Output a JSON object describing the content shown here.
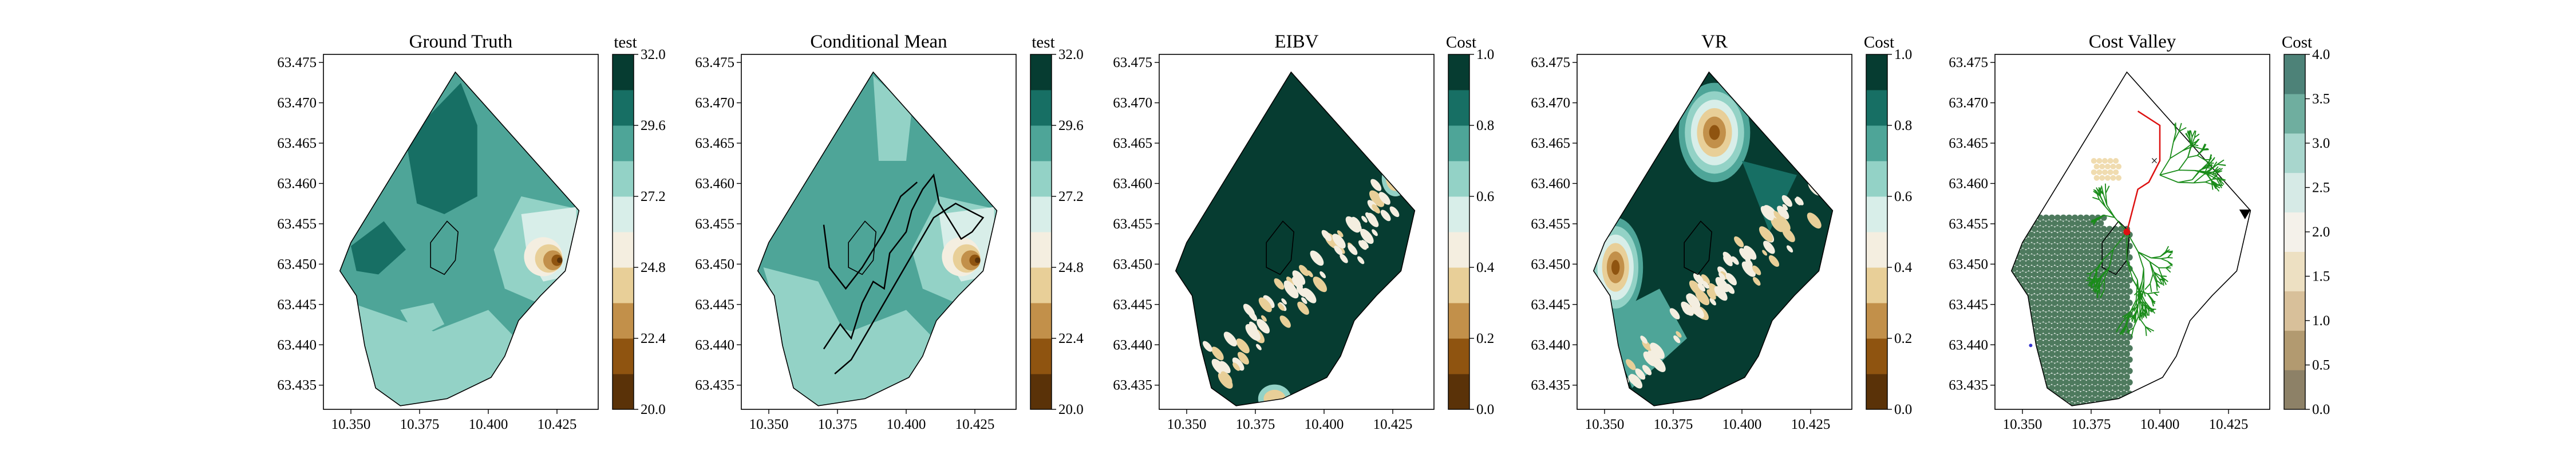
{
  "chart_data": [
    {
      "type": "heatmap",
      "title": "Ground Truth",
      "colorbar": {
        "label": "test",
        "min": 20.0,
        "max": 32.0,
        "ticks": [
          "20.0",
          "22.4",
          "24.8",
          "27.2",
          "29.6",
          "32.0"
        ]
      },
      "xlim": [
        10.34,
        10.44
      ],
      "ylim": [
        63.432,
        63.476
      ],
      "xticks": [
        "10.350",
        "10.375",
        "10.400",
        "10.425"
      ],
      "yticks": [
        "63.435",
        "63.440",
        "63.445",
        "63.450",
        "63.455",
        "63.460",
        "63.465",
        "63.470",
        "63.475"
      ],
      "overlay": "none"
    },
    {
      "type": "heatmap",
      "title": "Conditional Mean",
      "colorbar": {
        "label": "test",
        "min": 20.0,
        "max": 32.0,
        "ticks": [
          "20.0",
          "22.4",
          "24.8",
          "27.2",
          "29.6",
          "32.0"
        ]
      },
      "xlim": [
        10.34,
        10.44
      ],
      "ylim": [
        63.432,
        63.476
      ],
      "xticks": [
        "10.350",
        "10.375",
        "10.400",
        "10.425"
      ],
      "yticks": [
        "63.435",
        "63.440",
        "63.445",
        "63.450",
        "63.455",
        "63.460",
        "63.465",
        "63.470",
        "63.475"
      ],
      "overlay": "path"
    },
    {
      "type": "heatmap",
      "title": "EIBV",
      "colorbar": {
        "label": "Cost",
        "min": 0.0,
        "max": 1.0,
        "ticks": [
          "0.0",
          "0.2",
          "0.4",
          "0.6",
          "0.8",
          "1.0"
        ]
      },
      "xlim": [
        10.34,
        10.44
      ],
      "ylim": [
        63.432,
        63.476
      ],
      "xticks": [
        "10.350",
        "10.375",
        "10.400",
        "10.425"
      ],
      "yticks": [
        "63.435",
        "63.440",
        "63.445",
        "63.450",
        "63.455",
        "63.460",
        "63.465",
        "63.470",
        "63.475"
      ],
      "overlay": "none"
    },
    {
      "type": "heatmap",
      "title": "VR",
      "colorbar": {
        "label": "Cost",
        "min": 0.0,
        "max": 1.0,
        "ticks": [
          "0.0",
          "0.2",
          "0.4",
          "0.6",
          "0.8",
          "1.0"
        ]
      },
      "xlim": [
        10.34,
        10.44
      ],
      "ylim": [
        63.432,
        63.476
      ],
      "xticks": [
        "10.350",
        "10.375",
        "10.400",
        "10.425"
      ],
      "yticks": [
        "63.435",
        "63.440",
        "63.445",
        "63.450",
        "63.455",
        "63.460",
        "63.465",
        "63.470",
        "63.475"
      ],
      "overlay": "none"
    },
    {
      "type": "heatmap",
      "title": "Cost Valley",
      "colorbar": {
        "label": "Cost",
        "min": 0.0,
        "max": 4.0,
        "ticks": [
          "0.0",
          "0.5",
          "1.0",
          "1.5",
          "2.0",
          "2.5",
          "3.0",
          "3.5",
          "4.0"
        ]
      },
      "xlim": [
        10.34,
        10.44
      ],
      "ylim": [
        63.432,
        63.476
      ],
      "xticks": [
        "10.350",
        "10.375",
        "10.400",
        "10.425"
      ],
      "yticks": [
        "63.435",
        "63.440",
        "63.445",
        "63.450",
        "63.455",
        "63.460",
        "63.465",
        "63.470",
        "63.475"
      ],
      "overlay": "tree"
    }
  ],
  "colors": {
    "brbg_ramp": [
      "#5a3208",
      "#8f5410",
      "#c2904a",
      "#e8cf98",
      "#f4eee0",
      "#d8eee9",
      "#93d2c6",
      "#4ea598",
      "#176f64",
      "#063c31"
    ],
    "cost_ramp": [
      "#8d8167",
      "#b29a70",
      "#d8c09a",
      "#ede0c2",
      "#f4f1ea",
      "#d6eae6",
      "#a8d6cd",
      "#6fae9f",
      "#4d8278"
    ],
    "path": "#000000",
    "tree": "#1a8c1a",
    "route": "#dd1111",
    "dots": "#4e7a5e",
    "marker": "#3333cc"
  }
}
